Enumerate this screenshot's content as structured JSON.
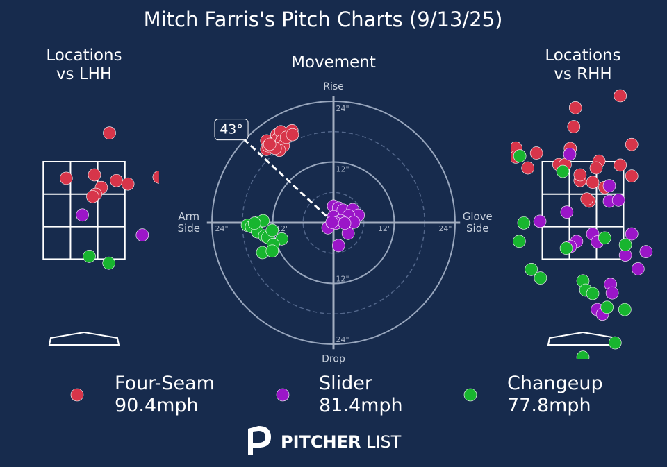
{
  "title": "Mitch Farris's Pitch Charts (9/13/25)",
  "chart_data": [
    {
      "type": "scatter",
      "title": "Locations\nvs LHH",
      "xlim": [
        -1.4,
        1.3
      ],
      "ylim": [
        -0.25,
        4.5
      ],
      "strike_zone": {
        "x": [
          -0.708,
          0.708
        ],
        "y": [
          1.5,
          3.2
        ]
      },
      "series": [
        {
          "name": "Four-Seam",
          "color": "#d7354a",
          "x": [
            0.44,
            -0.31,
            0.18,
            0.3,
            0.56,
            0.76,
            0.2,
            0.15,
            1.3
          ],
          "values": [
            3.7,
            2.91,
            2.97,
            2.75,
            2.87,
            2.81,
            2.63,
            2.59,
            2.93
          ]
        },
        {
          "name": "Slider",
          "color": "#9b16c8",
          "x": [
            -0.03,
            1.01
          ],
          "values": [
            2.27,
            1.92
          ]
        },
        {
          "name": "Changeup",
          "color": "#18b52f",
          "x": [
            0.09,
            0.43
          ],
          "values": [
            1.55,
            1.43
          ]
        }
      ]
    },
    {
      "type": "scatter",
      "title": "Movement",
      "xlim": [
        -25,
        25
      ],
      "ylim": [
        -25,
        25
      ],
      "axis_labels": {
        "top": "Rise",
        "bottom": "Drop",
        "left": "Arm\nSide",
        "right": "Glove\nSide"
      },
      "rings": [
        {
          "value": 12,
          "label": "12\""
        },
        {
          "value": 24,
          "label": "24\""
        }
      ],
      "dashed_rings": [
        6,
        18
      ],
      "arm_angle": {
        "value": 43,
        "label": "43°"
      },
      "series": [
        {
          "name": "Four-Seam",
          "color": "#d7354a",
          "x": [
            -13.2,
            -13.2,
            -12.9,
            -12.1,
            -11.2,
            -11.0,
            -10.4,
            -10.2,
            -9.9,
            -9.3,
            -8.2,
            -8.1,
            -10.7,
            -11.5,
            -12.6
          ],
          "values": [
            16.2,
            14.5,
            15.2,
            15.6,
            17.4,
            16.6,
            18.0,
            16.2,
            15.2,
            16.9,
            18.2,
            17.4,
            14.3,
            14.7,
            15.5
          ]
        },
        {
          "name": "Slider",
          "color": "#9b16c8",
          "x": [
            0.0,
            1.0,
            1.9,
            3.8,
            4.9,
            3.0,
            0.0,
            1.4,
            4.0,
            0.5,
            -1.1,
            2.9,
            1.0,
            -0.3,
            2.2
          ],
          "values": [
            3.3,
            2.9,
            2.5,
            2.6,
            1.5,
            1.4,
            1.2,
            0.4,
            0.1,
            -0.1,
            -1.0,
            -2.1,
            -4.5,
            0.1,
            -0.1
          ]
        },
        {
          "name": "Changeup",
          "color": "#18b52f",
          "x": [
            -17.0,
            -16.2,
            -14.8,
            -13.9,
            -15.0,
            -13.6,
            -13.0,
            -12.1,
            -10.2,
            -11.9,
            -14.0,
            -12.1,
            -15.6
          ],
          "values": [
            -0.5,
            -0.8,
            0.1,
            0.4,
            -1.8,
            -2.6,
            -2.9,
            -1.5,
            -3.2,
            -4.3,
            -5.9,
            -5.6,
            -0.1
          ]
        }
      ]
    },
    {
      "type": "scatter",
      "title": "Locations\nvs RHH",
      "xlim": [
        -1.25,
        1.46
      ],
      "ylim": [
        -0.25,
        4.5
      ],
      "strike_zone": {
        "x": [
          -0.708,
          0.708
        ],
        "y": [
          1.5,
          3.2
        ]
      },
      "series": [
        {
          "name": "Four-Seam",
          "color": "#d7354a",
          "x": [
            0.65,
            -0.13,
            -0.16,
            0.85,
            -1.17,
            -1.17,
            -0.81,
            -0.96,
            -0.22,
            -0.42,
            -0.31,
            0.28,
            0.23,
            -0.05,
            -0.05,
            0.17,
            0.65,
            0.85,
            0.38,
            0.11,
            0.07
          ],
          "values": [
            4.35,
            4.14,
            3.81,
            3.5,
            3.44,
            3.28,
            3.35,
            3.09,
            3.43,
            3.15,
            3.15,
            3.21,
            3.09,
            2.87,
            2.97,
            2.84,
            3.14,
            2.95,
            2.75,
            2.51,
            2.55
          ]
        },
        {
          "name": "Slider",
          "color": "#9b16c8",
          "x": [
            -0.23,
            0.46,
            0.46,
            0.62,
            -0.28,
            -0.75,
            0.17,
            0.25,
            0.85,
            -0.11,
            -0.22,
            1.1,
            0.74,
            0.96,
            0.48,
            0.51,
            0.25,
            0.34
          ],
          "values": [
            3.33,
            2.78,
            2.51,
            2.53,
            2.32,
            2.16,
            1.94,
            1.8,
            1.94,
            1.81,
            1.72,
            1.63,
            1.57,
            1.33,
            1.06,
            0.91,
            0.62,
            0.54
          ]
        },
        {
          "name": "Changeup",
          "color": "#18b52f",
          "x": [
            -1.1,
            -0.35,
            -1.03,
            -1.11,
            -0.29,
            0.38,
            0.74,
            -0.9,
            -0.74,
            0.0,
            0.05,
            0.17,
            0.42,
            0.73,
            0.56,
            0.0
          ],
          "values": [
            3.3,
            3.03,
            2.13,
            1.81,
            1.69,
            1.87,
            1.75,
            1.32,
            1.17,
            1.12,
            0.96,
            0.9,
            0.66,
            0.62,
            0.04,
            -0.21
          ]
        }
      ]
    }
  ],
  "legend": {
    "speeds": [
      "90.4mph",
      "81.4mph",
      "77.8mph"
    ]
  },
  "logo": {
    "brand": "PITCHER",
    "suffix": "LIST"
  }
}
